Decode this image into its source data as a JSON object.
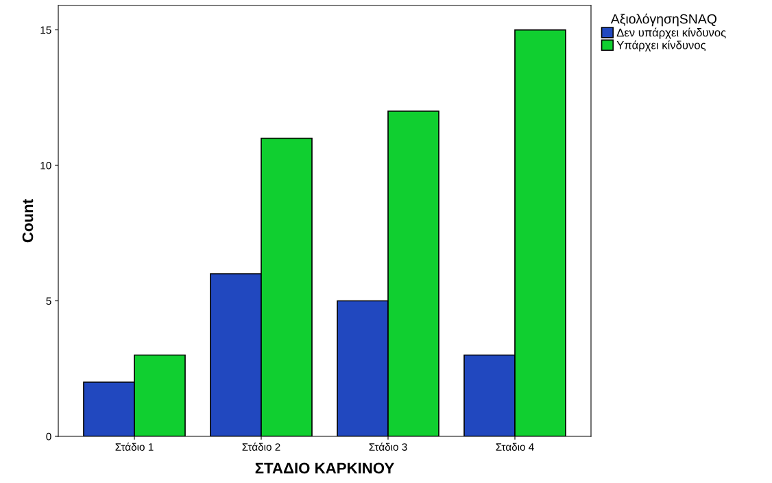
{
  "chart_data": {
    "type": "bar",
    "xlabel": "ΣΤΑΔΙΟ ΚΑΡΚΙΝΟΥ",
    "ylabel": "Count",
    "legend_title": "ΑξιολόγησηSNAQ",
    "categories": [
      "Στάδιο 1",
      "Στάδιο 2",
      "Στάδιο 3",
      "Σταδιο 4"
    ],
    "series": [
      {
        "name": "Δεν υπάρχει κίνδυνος",
        "color": "#2148bf",
        "values": [
          2,
          6,
          5,
          3
        ]
      },
      {
        "name": "Υπάρχει κίνδυνος",
        "color": "#10cf30",
        "values": [
          3,
          11,
          12,
          15
        ]
      }
    ],
    "ylim": [
      0,
      15.9
    ],
    "yticks": [
      0,
      5,
      10,
      15
    ],
    "grid": false,
    "legend": "top right"
  }
}
